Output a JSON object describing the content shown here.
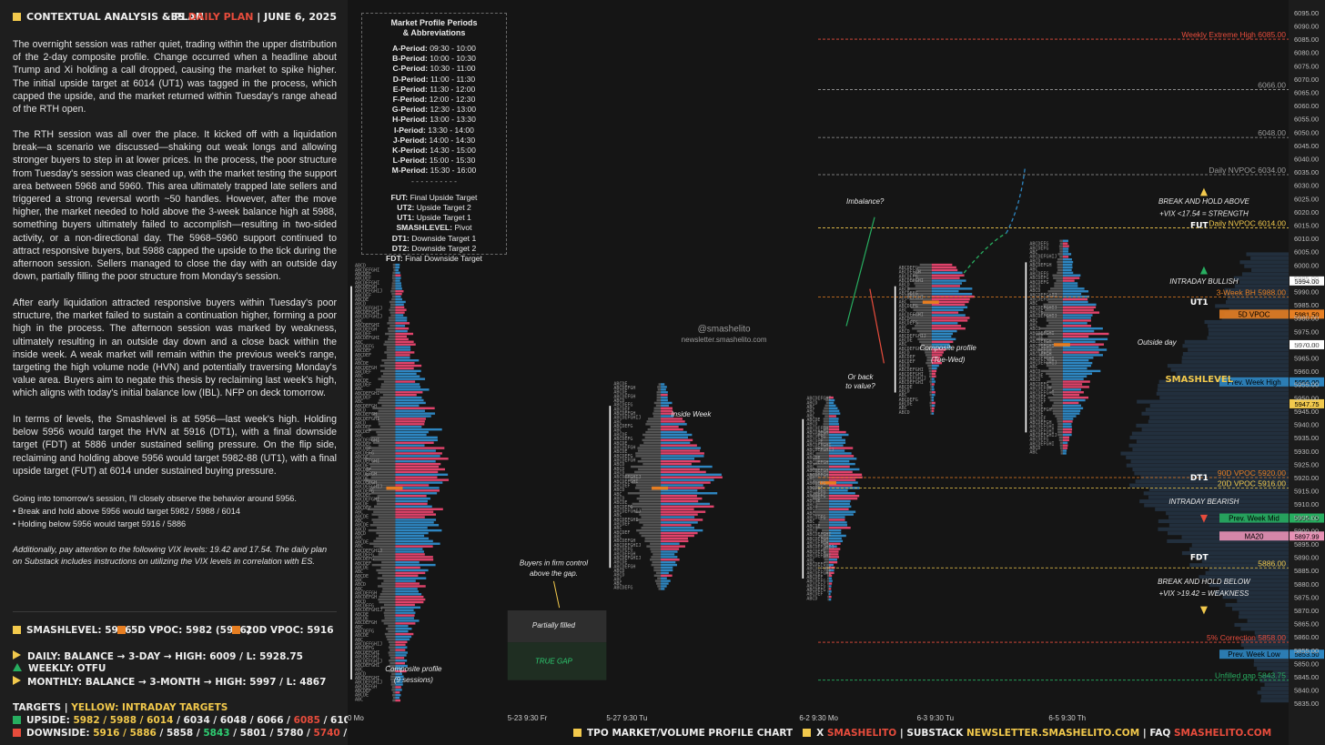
{
  "header": {
    "title": "CONTEXTUAL ANALYSIS & PLAN",
    "right_prefix": "ES",
    "right_plan": "DAILY PLAN",
    "right_sep": "|",
    "right_date": "JUNE 6, 2025"
  },
  "paragraphs": [
    "The overnight session was rather quiet, trading within the upper distribution of the 2-day composite profile. Change occurred when a headline about Trump and Xi holding a call dropped, causing the market to spike higher. The initial upside target at 6014 (UT1) was tagged in the process, which capped the upside, and the market returned within Tuesday's range ahead of the RTH open.",
    "The RTH session was all over the place. It kicked off with a liquidation break—a scenario we discussed—shaking out weak longs and allowing stronger buyers to step in at lower prices. In the process, the poor structure from Tuesday's session was cleaned up, with the market testing the support area between 5968 and 5960. This area ultimately trapped late sellers and triggered a strong reversal worth ~50 handles. However, after the move higher, the market needed to hold above the 3-week balance high at 5988, something buyers ultimately failed to accomplish—resulting in two-sided activity, or a non-directional day. The 5968–5960 support continued to attract responsive buyers, but 5988 capped the upside to the tick during the afternoon session. Sellers managed to close the day with an outside day down, partially filling the poor structure from Monday's session.",
    "After early liquidation attracted responsive buyers within Tuesday's poor structure, the market failed to sustain a continuation higher, forming a poor high in the process. The afternoon session was marked by weakness, ultimately resulting in an outside day down and a close back within the inside week. A weak market will remain within the previous week's range, targeting the high volume node (HVN) and potentially traversing Monday's value area. Buyers aim to negate this thesis by reclaiming last week's high, which aligns with today's initial balance low (IBL). NFP on deck tomorrow.",
    "In terms of levels, the Smashlevel is at 5956—last week's high. Holding below 5956 would target the HVN at 5916 (DT1), with a final downside target (FDT) at 5886 under sustained selling pressure. On the flip side, reclaiming and holding above 5956 would target 5982-88 (UT1), with a final upside target (FUT) at 6014 under sustained buying pressure."
  ],
  "going_into": "Going into tomorrow's session, I'll closely observe the behavior around 5956.",
  "bullets": [
    "• Break and hold above 5956 would target 5982 / 5988 / 6014",
    "• Holding below 5956 would target 5916 / 5886"
  ],
  "vix_note": "Additionally, pay attention to the following VIX levels: 19.42 and 17.54. The daily plan on Substack includes instructions on utilizing the VIX levels in correlation with ES.",
  "levels_row": {
    "smashlevel": "SMASHLEVEL: 5956",
    "vpoc5d": "5D VPOC: 5982 (5916)",
    "vpoc20d": "20D VPOC: 5916",
    "colors": {
      "smashlevel": "#f2c94c",
      "vpoc5d": "#e67e22",
      "vpoc20d": "#e67e22"
    }
  },
  "bias": {
    "daily": "DAILY: BALANCE → 3-DAY → HIGH: 6009 / L: 5928.75",
    "weekly": "WEEKLY: OTFU",
    "monthly": "MONTHLY: BALANCE → 3-MONTH → HIGH: 5997 / L: 4867"
  },
  "targets": {
    "title_left": "TARGETS",
    "title_sep": "|",
    "title_right": "YELLOW: INTRADAY TARGETS",
    "upside_label": "UPSIDE:",
    "upside_yellow": "5982 / 5988 / 6014",
    "upside_rest": "/ 6034 / 6048 / 6066 /",
    "upside_red": "6085",
    "upside_tail": "/ 6105 / 6120",
    "downside_label": "DOWNSIDE:",
    "downside_yellow": "5916 / 5886",
    "downside_rest1": "/ 5858 /",
    "downside_green1": "5843",
    "downside_rest2": "/ 5801 / 5780 /",
    "downside_red": "5740",
    "downside_sep": "/",
    "downside_green2": "5710"
  },
  "legend": {
    "title1": "Market Profile Periods",
    "title2": "& Abbreviations",
    "periods": [
      [
        "A-Period",
        "09:30 - 10:00"
      ],
      [
        "B-Period",
        "10:00 - 10:30"
      ],
      [
        "C-Period",
        "10:30 - 11:00"
      ],
      [
        "D-Period",
        "11:00 - 11:30"
      ],
      [
        "E-Period",
        "11:30 - 12:00"
      ],
      [
        "F-Period",
        "12:00 - 12:30"
      ],
      [
        "G-Period",
        "12:30 - 13:00"
      ],
      [
        "H-Period",
        "13:00 - 13:30"
      ],
      [
        "I-Period",
        "13:30 - 14:00"
      ],
      [
        "J-Period",
        "14:00 - 14:30"
      ],
      [
        "K-Period",
        "14:30 - 15:00"
      ],
      [
        "L-Period",
        "15:00 - 15:30"
      ],
      [
        "M-Period",
        "15:30 - 16:00"
      ]
    ],
    "divider": "- - - - - - - - - -",
    "abbreviations": [
      [
        "FUT",
        "Final Upside Target"
      ],
      [
        "UT2",
        "Upside Target 2"
      ],
      [
        "UT1",
        "Upside Target 1"
      ],
      [
        "SMASHLEVEL",
        "Pivot"
      ],
      [
        "DT1",
        "Downside Target 1"
      ],
      [
        "DT2",
        "Downside Target 2"
      ],
      [
        "FDT",
        "Final Downside Target"
      ]
    ]
  },
  "watermark": {
    "handle": "@smashelito",
    "site": "newsletter.smashelito.com"
  },
  "bottom_bar": {
    "chart_label": "TPO MARKET/VOLUME PROFILE CHART",
    "x_label": "X",
    "x_handle": "SMASHELITO",
    "sep1": "|",
    "substack_label": "SUBSTACK",
    "substack_url": "NEWSLETTER.SMASHELITO.COM",
    "sep2": "|",
    "faq_label": "FAQ",
    "faq_handle": "SMASHELITO.COM"
  },
  "chart_data": {
    "type": "tpo-profile",
    "ylim": [
      5832,
      6097
    ],
    "y_ticks": [
      5835,
      5840,
      5845,
      5850,
      5855,
      5860,
      5865,
      5870,
      5875,
      5880,
      5885,
      5890,
      5895,
      5900,
      5905,
      5910,
      5915,
      5920,
      5925,
      5930,
      5935,
      5940,
      5945,
      5950,
      5955,
      5960,
      5965,
      5970,
      5975,
      5980,
      5985,
      5990,
      5995,
      6000,
      6005,
      6010,
      6015,
      6020,
      6025,
      6030,
      6035,
      6040,
      6045,
      6050,
      6055,
      6060,
      6065,
      6070,
      6075,
      6080,
      6085,
      6090,
      6095
    ],
    "tick_format": "0.00",
    "x_labels": [
      {
        "text": "0 Mo",
        "pos": 0.0
      },
      {
        "text": "5-23  9:30 Fr",
        "pos": 0.17
      },
      {
        "text": "5-27  9:30 Tu",
        "pos": 0.275
      },
      {
        "text": "6-2  9:30 Mo",
        "pos": 0.48
      },
      {
        "text": "6-3  9:30 Tu",
        "pos": 0.605
      },
      {
        "text": "6-5  9:30 Th",
        "pos": 0.745
      }
    ],
    "level_lines": [
      {
        "label": "Weekly Extreme High",
        "value": 6085,
        "display": "6085.00",
        "color": "#e74c3c",
        "style": "dashed"
      },
      {
        "label": "",
        "value": 6066,
        "display": "6066.00",
        "color": "#9a9a9a",
        "style": "dashed"
      },
      {
        "label": "",
        "value": 6048,
        "display": "6048.00",
        "color": "#9a9a9a",
        "style": "dashed"
      },
      {
        "label": "Daily NVPOC",
        "value": 6034,
        "display": "6034.00",
        "color": "#9a9a9a",
        "style": "dashed"
      },
      {
        "label": "Daily NVPOC",
        "value": 6014,
        "display": "6014.00",
        "color": "#f2c94c",
        "style": "dashed"
      },
      {
        "label": "3-Week BH",
        "value": 5988,
        "display": "5988.00",
        "color": "#e67e22",
        "style": "dashed"
      },
      {
        "label": "90D VPOC",
        "value": 5920,
        "display": "5920.00",
        "color": "#e67e22",
        "style": "dashed"
      },
      {
        "label": "20D VPOC",
        "value": 5916,
        "display": "5916.00",
        "color": "#f2c94c",
        "style": "dashed"
      },
      {
        "label": "",
        "value": 5886,
        "display": "5886.00",
        "color": "#f2c94c",
        "style": "dashed"
      },
      {
        "label": "5% Correction",
        "value": 5858,
        "display": "5858.00",
        "color": "#e74c3c",
        "style": "dashed"
      },
      {
        "label": "Unfilled gap",
        "value": 5843.75,
        "display": "5843.75",
        "color": "#27ae60",
        "style": "dashed"
      }
    ],
    "price_badges": [
      {
        "label": "",
        "value": 5994,
        "display": "5994.00",
        "bg": "#ffffff",
        "fg": "#000000"
      },
      {
        "label": "5D VPOC",
        "value": 5981.5,
        "display": "5981.50",
        "bg": "#e67e22",
        "fg": "#000000"
      },
      {
        "label": "",
        "value": 5970,
        "display": "5970.00",
        "bg": "#ffffff",
        "fg": "#000000"
      },
      {
        "label": "Prev. Week High",
        "value": 5956,
        "display": "5956.00",
        "bg": "#2e86c1",
        "fg": "#000000"
      },
      {
        "label": "",
        "value": 5947.75,
        "display": "5947.75",
        "bg": "#f2c94c",
        "fg": "#000000"
      },
      {
        "label": "Prev. Week Mid",
        "value": 5904.75,
        "display": "5904.75",
        "bg": "#27ae60",
        "fg": "#000000"
      },
      {
        "label": "MA20",
        "value": 5897.99,
        "display": "5897.99",
        "bg": "#e891b5",
        "fg": "#000000"
      },
      {
        "label": "Prev. Week Low",
        "value": 5853.5,
        "display": "5853.50",
        "bg": "#2e86c1",
        "fg": "#000000"
      }
    ],
    "target_labels": [
      {
        "text": "FUT",
        "value": 6014
      },
      {
        "text": "UT1",
        "value": 5985
      },
      {
        "text": "SMASHLEVEL",
        "value": 5956
      },
      {
        "text": "DT1",
        "value": 5919
      },
      {
        "text": "FDT",
        "value": 5889
      }
    ],
    "annotations": [
      {
        "text": "BREAK AND HOLD ABOVE",
        "value": 6023
      },
      {
        "text": "+VIX <17.54 = STRENGTH",
        "value": 6018.5
      },
      {
        "text": "INTRADAY BULLISH",
        "value": 5993
      },
      {
        "text": "INTRADAY BEARISH",
        "value": 5910
      },
      {
        "text": "BREAK AND HOLD BELOW",
        "value": 5880
      },
      {
        "text": "+VIX >19.42 = WEAKNESS",
        "value": 5875.5
      }
    ],
    "notes": [
      {
        "text": "Imbalance?",
        "pos": 0.55,
        "value": 6023
      },
      {
        "text": "Or back",
        "pos": 0.545,
        "value": 5957
      },
      {
        "text": "to value?",
        "pos": 0.545,
        "value": 5953.5
      },
      {
        "text": "Composite profile",
        "pos": 0.638,
        "value": 5968
      },
      {
        "text": "(Tue-Wed)",
        "pos": 0.638,
        "value": 5963.5
      },
      {
        "text": "Outside day",
        "pos": 0.86,
        "value": 5970
      },
      {
        "text": "Inside Week",
        "pos": 0.365,
        "value": 5943
      },
      {
        "text": "Buyers in firm control",
        "pos": 0.219,
        "value": 5887
      },
      {
        "text": "above the gap.",
        "pos": 0.219,
        "value": 5883
      },
      {
        "text": "Partially filled",
        "pos": 0.219,
        "value": 5863.5
      },
      {
        "text": "TRUE GAP",
        "pos": 0.219,
        "value": 5850
      },
      {
        "text": "Composite profile",
        "pos": 0.07,
        "value": 5847
      },
      {
        "text": "(9 sessions)",
        "pos": 0.07,
        "value": 5843
      }
    ],
    "volume_profile": {
      "sessions": [
        {
          "name": "composite 9 sessions",
          "start": 0.0,
          "end": 0.145,
          "high": 6000,
          "low": 5836,
          "poc": 5916
        },
        {
          "name": "5-27",
          "start": 0.275,
          "end": 0.44,
          "high": 5955,
          "low": 5878,
          "poc": 5916
        },
        {
          "name": "6-2",
          "start": 0.48,
          "end": 0.57,
          "high": 5950,
          "low": 5874,
          "poc": 5918
        },
        {
          "name": "6-3 / 6-4",
          "start": 0.578,
          "end": 0.7,
          "high": 6000,
          "low": 5944,
          "poc": 5986
        },
        {
          "name": "6-5",
          "start": 0.717,
          "end": 0.84,
          "high": 6009,
          "low": 5929,
          "poc": 5970
        }
      ]
    }
  }
}
